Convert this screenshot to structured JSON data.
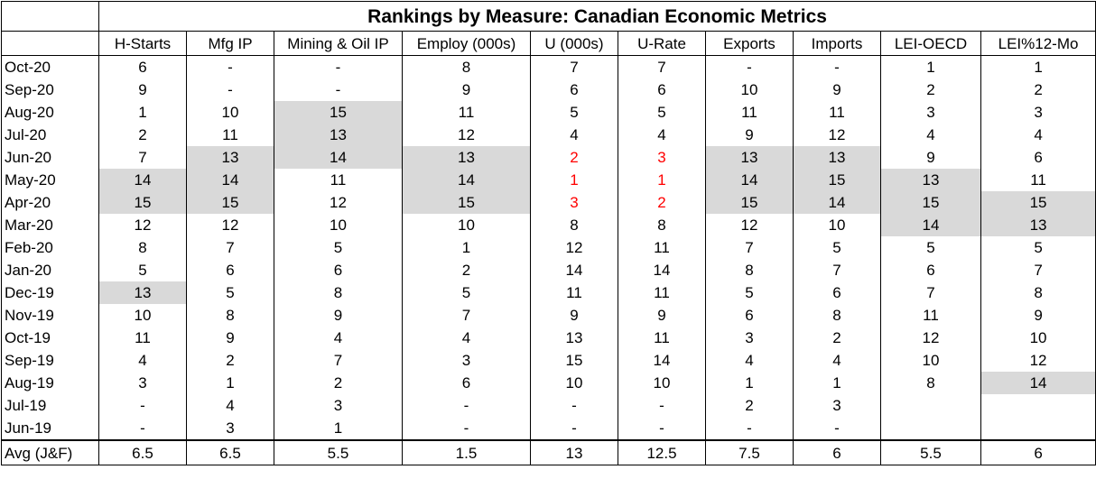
{
  "title": "Rankings by Measure: Canadian Economic Metrics",
  "columns": [
    "H-Starts",
    "Mfg IP",
    "Mining & Oil IP",
    "Employ (000s)",
    "U (000s)",
    "U-Rate",
    "Exports",
    "Imports",
    "LEI-OECD",
    "LEI%12-Mo"
  ],
  "rows": [
    {
      "label": "Oct-20",
      "values": [
        "6",
        "-",
        "-",
        "8",
        "7",
        "7",
        "-",
        "-",
        "1",
        "1"
      ],
      "highlight": [],
      "red": []
    },
    {
      "label": "Sep-20",
      "values": [
        "9",
        "-",
        "-",
        "9",
        "6",
        "6",
        "10",
        "9",
        "2",
        "2"
      ],
      "highlight": [],
      "red": []
    },
    {
      "label": "Aug-20",
      "values": [
        "1",
        "10",
        "15",
        "11",
        "5",
        "5",
        "11",
        "11",
        "3",
        "3"
      ],
      "highlight": [
        2
      ],
      "red": []
    },
    {
      "label": "Jul-20",
      "values": [
        "2",
        "11",
        "13",
        "12",
        "4",
        "4",
        "9",
        "12",
        "4",
        "4"
      ],
      "highlight": [
        2
      ],
      "red": []
    },
    {
      "label": "Jun-20",
      "values": [
        "7",
        "13",
        "14",
        "13",
        "2",
        "3",
        "13",
        "13",
        "9",
        "6"
      ],
      "highlight": [
        1,
        2,
        3,
        6,
        7
      ],
      "red": [
        4,
        5
      ]
    },
    {
      "label": "May-20",
      "values": [
        "14",
        "14",
        "11",
        "14",
        "1",
        "1",
        "14",
        "15",
        "13",
        "11"
      ],
      "highlight": [
        0,
        1,
        3,
        6,
        7,
        8
      ],
      "red": [
        4,
        5
      ]
    },
    {
      "label": "Apr-20",
      "values": [
        "15",
        "15",
        "12",
        "15",
        "3",
        "2",
        "15",
        "14",
        "15",
        "15"
      ],
      "highlight": [
        0,
        1,
        3,
        6,
        7,
        8,
        9
      ],
      "red": [
        4,
        5
      ]
    },
    {
      "label": "Mar-20",
      "values": [
        "12",
        "12",
        "10",
        "10",
        "8",
        "8",
        "12",
        "10",
        "14",
        "13"
      ],
      "highlight": [
        8,
        9
      ],
      "red": []
    },
    {
      "label": "Feb-20",
      "values": [
        "8",
        "7",
        "5",
        "1",
        "12",
        "11",
        "7",
        "5",
        "5",
        "5"
      ],
      "highlight": [],
      "red": []
    },
    {
      "label": "Jan-20",
      "values": [
        "5",
        "6",
        "6",
        "2",
        "14",
        "14",
        "8",
        "7",
        "6",
        "7"
      ],
      "highlight": [],
      "red": []
    },
    {
      "label": "Dec-19",
      "values": [
        "13",
        "5",
        "8",
        "5",
        "11",
        "11",
        "5",
        "6",
        "7",
        "8"
      ],
      "highlight": [
        0
      ],
      "red": []
    },
    {
      "label": "Nov-19",
      "values": [
        "10",
        "8",
        "9",
        "7",
        "9",
        "9",
        "6",
        "8",
        "11",
        "9"
      ],
      "highlight": [],
      "red": []
    },
    {
      "label": "Oct-19",
      "values": [
        "11",
        "9",
        "4",
        "4",
        "13",
        "11",
        "3",
        "2",
        "12",
        "10"
      ],
      "highlight": [],
      "red": []
    },
    {
      "label": "Sep-19",
      "values": [
        "4",
        "2",
        "7",
        "3",
        "15",
        "14",
        "4",
        "4",
        "10",
        "12"
      ],
      "highlight": [],
      "red": []
    },
    {
      "label": "Aug-19",
      "values": [
        "3",
        "1",
        "2",
        "6",
        "10",
        "10",
        "1",
        "1",
        "8",
        "14"
      ],
      "highlight": [
        9
      ],
      "red": []
    },
    {
      "label": "Jul-19",
      "values": [
        "-",
        "4",
        "3",
        "-",
        "-",
        "-",
        "2",
        "3",
        "",
        ""
      ],
      "highlight": [],
      "red": []
    },
    {
      "label": "Jun-19",
      "values": [
        "-",
        "3",
        "1",
        "-",
        "-",
        "-",
        "-",
        "-",
        "",
        ""
      ],
      "highlight": [],
      "red": []
    }
  ],
  "footer": {
    "label": "Avg (J&F)",
    "values": [
      "6.5",
      "6.5",
      "5.5",
      "1.5",
      "13",
      "12.5",
      "7.5",
      "6",
      "5.5",
      "6"
    ]
  }
}
